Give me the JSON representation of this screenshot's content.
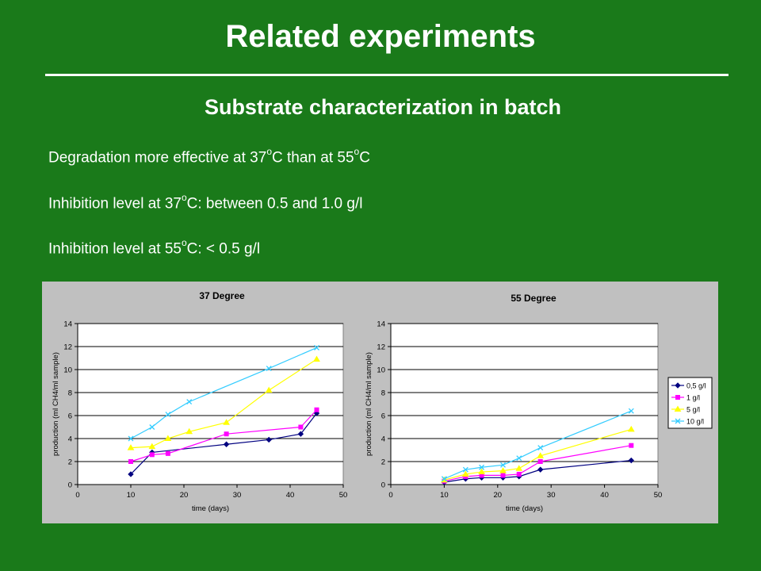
{
  "slide": {
    "title": "Related experiments",
    "subtitle": "Substrate characterization in batch",
    "bullets": [
      {
        "pre": "Degradation more effective at 37",
        "sup1": "o",
        "mid": "C than at 55",
        "sup2": "o",
        "post": "C"
      },
      {
        "pre": "Inhibition level at 37",
        "sup1": "o",
        "mid": "C: between 0.5 and 1.0 g/l",
        "sup2": "",
        "post": ""
      },
      {
        "pre": "Inhibition level at 55",
        "sup1": "o",
        "mid": "C: < 0.5 g/l",
        "sup2": "",
        "post": ""
      }
    ]
  },
  "colors": {
    "background": "#1a7a1a",
    "panel": "#c0c0c0",
    "plot": "#ffffff"
  },
  "chart_data": [
    {
      "type": "line",
      "title": "37 Degree",
      "xlabel": "time (days)",
      "ylabel": "production (ml CH4/ml sample)",
      "xlim": [
        0,
        50
      ],
      "ylim": [
        0,
        14
      ],
      "xticks": [
        0,
        10,
        20,
        30,
        40,
        50
      ],
      "yticks": [
        0,
        2,
        4,
        6,
        8,
        10,
        12,
        14
      ],
      "grid": "horizontal",
      "legend": null,
      "series": [
        {
          "name": "0,5 g/l",
          "color": "#000080",
          "marker": "diamond",
          "x": [
            10,
            14,
            28,
            36,
            42,
            45
          ],
          "y": [
            0.9,
            2.8,
            3.5,
            3.9,
            4.4,
            6.2
          ]
        },
        {
          "name": "1 g/l",
          "color": "#ff00ff",
          "marker": "square",
          "x": [
            10,
            14,
            17,
            28,
            42,
            45
          ],
          "y": [
            2.0,
            2.6,
            2.7,
            4.4,
            5.0,
            6.5
          ]
        },
        {
          "name": "5 g/l",
          "color": "#ffff00",
          "marker": "triangle",
          "x": [
            10,
            14,
            17,
            21,
            28,
            36,
            45
          ],
          "y": [
            3.2,
            3.3,
            4.0,
            4.6,
            5.4,
            8.2,
            10.9
          ]
        },
        {
          "name": "10 g/l",
          "color": "#33ccff",
          "marker": "x",
          "x": [
            10,
            14,
            17,
            21,
            36,
            45
          ],
          "y": [
            4.0,
            5.0,
            6.1,
            7.2,
            10.1,
            11.9
          ]
        }
      ]
    },
    {
      "type": "line",
      "title": "55 Degree",
      "xlabel": "time (days)",
      "ylabel": "production (ml CH4/ml sample)",
      "xlim": [
        0,
        50
      ],
      "ylim": [
        0,
        14
      ],
      "xticks": [
        0,
        10,
        20,
        30,
        40,
        50
      ],
      "yticks": [
        0,
        2,
        4,
        6,
        8,
        10,
        12,
        14
      ],
      "grid": "horizontal",
      "legend": "right",
      "series": [
        {
          "name": "0,5 g/l",
          "color": "#000080",
          "marker": "diamond",
          "x": [
            10,
            14,
            17,
            21,
            24,
            28,
            45
          ],
          "y": [
            0.2,
            0.5,
            0.6,
            0.6,
            0.7,
            1.3,
            2.1
          ]
        },
        {
          "name": "1 g/l",
          "color": "#ff00ff",
          "marker": "square",
          "x": [
            10,
            14,
            17,
            21,
            24,
            28,
            45
          ],
          "y": [
            0.3,
            0.7,
            0.8,
            0.8,
            0.9,
            2.0,
            3.4
          ]
        },
        {
          "name": "5 g/l",
          "color": "#ffff00",
          "marker": "triangle",
          "x": [
            10,
            14,
            17,
            21,
            24,
            28,
            45
          ],
          "y": [
            0.4,
            0.9,
            1.1,
            1.2,
            1.4,
            2.5,
            4.8
          ]
        },
        {
          "name": "10 g/l",
          "color": "#33ccff",
          "marker": "x",
          "x": [
            10,
            14,
            17,
            21,
            24,
            28,
            45
          ],
          "y": [
            0.5,
            1.3,
            1.5,
            1.7,
            2.3,
            3.2,
            6.4
          ]
        }
      ]
    }
  ]
}
